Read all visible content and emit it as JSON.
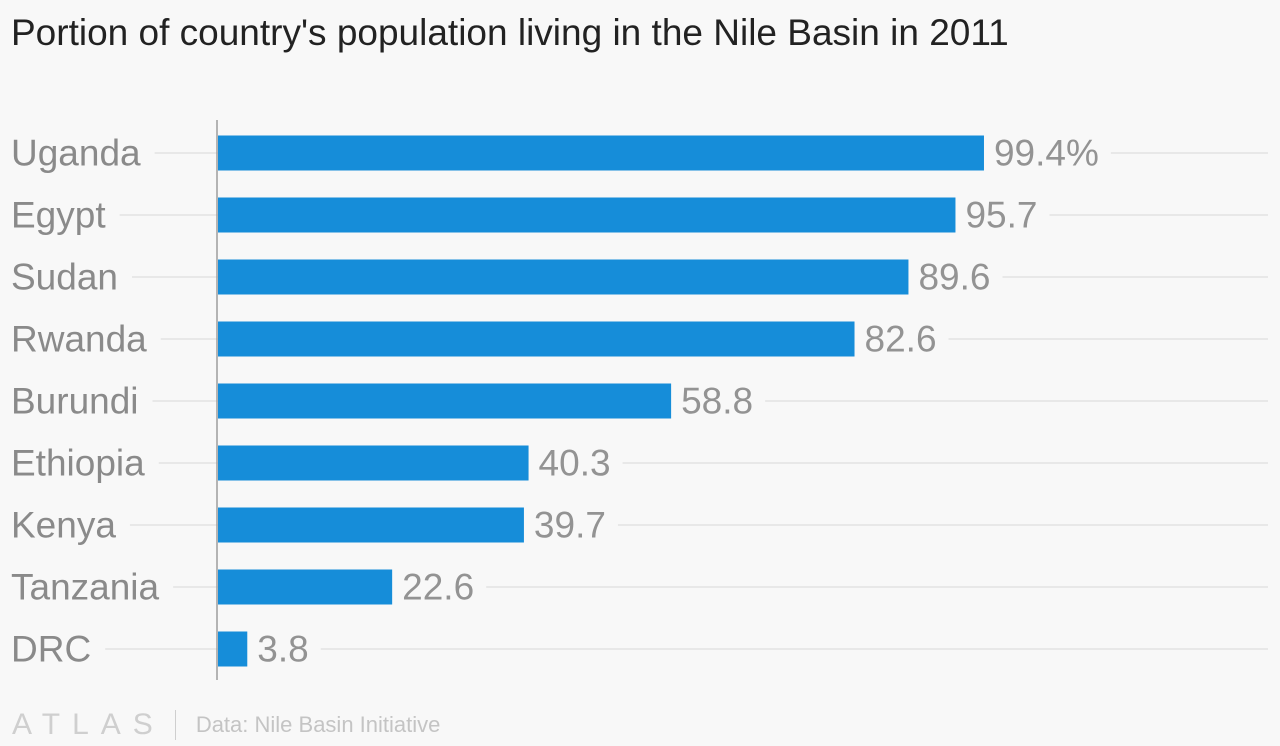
{
  "colors": {
    "bar": "#168dd9",
    "grid": "#e8e8e8",
    "axis": "#9e9e9e",
    "category_label": "#8a8a8a",
    "value_label": "#939393"
  },
  "chart_data": {
    "type": "bar",
    "orientation": "horizontal",
    "title": "Portion of country's population living in the Nile Basin in 2011",
    "categories": [
      "Uganda",
      "Egypt",
      "Sudan",
      "Rwanda",
      "Burundi",
      "Ethiopia",
      "Kenya",
      "Tanzania",
      "DRC"
    ],
    "values": [
      99.4,
      95.7,
      89.6,
      82.6,
      58.8,
      40.3,
      39.7,
      22.6,
      3.8
    ],
    "value_labels": [
      "99.4%",
      "95.7",
      "89.6",
      "82.6",
      "58.8",
      "40.3",
      "39.7",
      "22.6",
      "3.8"
    ],
    "xlim": [
      0,
      100
    ],
    "grid": true
  },
  "footer": {
    "logo": "ATLAS",
    "source": "Data: Nile Basin Initiative"
  }
}
